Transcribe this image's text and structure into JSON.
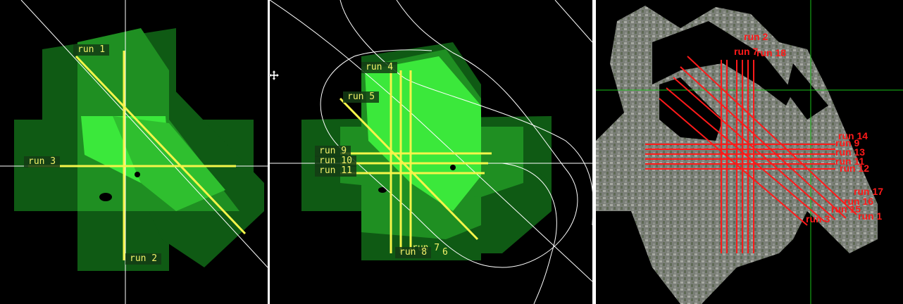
{
  "colors": {
    "background": "#000000",
    "coverage_dark": "#0f5a14",
    "coverage_mid": "#1f8f22",
    "coverage_bright": "#3be83b",
    "flight_line": "#f5f54a",
    "guide_line": "#ffffff",
    "red_line": "#ff1a1a",
    "crosshair": "#18c018"
  },
  "panel1": {
    "labels": [
      "run 1",
      "run 2",
      "run 3"
    ]
  },
  "panel2": {
    "labels": [
      "run 4",
      "run 5",
      "run 9",
      "run 10",
      "run 11",
      "run 7",
      "run 8",
      "6"
    ]
  },
  "panel3": {
    "labels": [
      "run 2",
      "run 7",
      "run 18",
      "run 14",
      "run 9",
      "run 13",
      "run 11",
      "run 12",
      "run 17",
      "run 16",
      "run 15",
      "run 1",
      "run 3"
    ]
  },
  "icons": [
    "move-icon"
  ]
}
